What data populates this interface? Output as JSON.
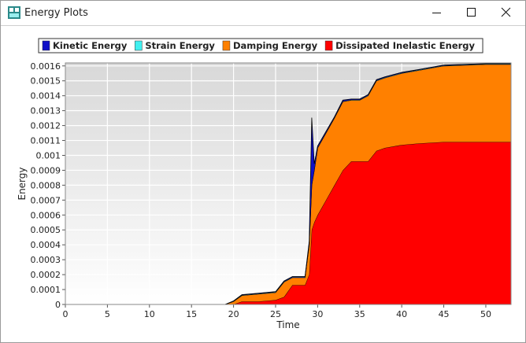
{
  "window": {
    "title": "Energy Plots"
  },
  "chart_data": {
    "type": "stacked-area",
    "xlabel": "Time",
    "ylabel": "Energy",
    "x": [
      0,
      17,
      19,
      20,
      21,
      23,
      25,
      26,
      27,
      28.5,
      29,
      29.3,
      29.6,
      30,
      31,
      32,
      33,
      34,
      35,
      36,
      37,
      38,
      40,
      42,
      45,
      50,
      53
    ],
    "series": [
      {
        "name": "Kinetic Energy",
        "color": "#1010c8",
        "values": [
          0,
          0,
          0,
          2e-06,
          3e-06,
          3e-06,
          3e-06,
          4e-06,
          4e-06,
          4e-06,
          2e-05,
          0.00045,
          4e-05,
          1e-05,
          8e-06,
          6e-06,
          8e-06,
          5e-06,
          5e-06,
          5e-06,
          5e-06,
          4e-06,
          4e-06,
          3e-06,
          3e-06,
          2e-06,
          2e-06
        ]
      },
      {
        "name": "Strain Energy",
        "color": "#40f0f0",
        "values": [
          0,
          0,
          0,
          2e-06,
          3e-06,
          3e-06,
          3e-06,
          3e-06,
          3e-06,
          3e-06,
          3e-06,
          3e-06,
          3e-06,
          3e-06,
          3e-06,
          3e-06,
          3e-06,
          3e-06,
          3e-06,
          3e-06,
          3e-06,
          3e-06,
          3e-06,
          3e-06,
          3e-06,
          3e-06,
          3e-06
        ]
      },
      {
        "name": "Damping Energy",
        "color": "#ff8000",
        "values": [
          0,
          0,
          0,
          2e-05,
          4e-05,
          5e-05,
          5e-05,
          0.0001,
          5e-05,
          5e-05,
          0.0002,
          0.0003,
          0.00035,
          0.00045,
          0.00045,
          0.00045,
          0.00046,
          0.00041,
          0.00041,
          0.00044,
          0.00047,
          0.00047,
          0.00048,
          0.00049,
          0.00051,
          0.00052,
          0.00052
        ]
      },
      {
        "name": "Dissipated Inelastic Energy",
        "color": "#ff0000",
        "values": [
          0,
          0,
          0,
          0,
          2e-05,
          2e-05,
          3e-05,
          5e-05,
          0.00013,
          0.00013,
          0.0002,
          0.0005,
          0.00055,
          0.0006,
          0.0007,
          0.0008,
          0.0009,
          0.00096,
          0.00096,
          0.00096,
          0.00103,
          0.00105,
          0.00107,
          0.00108,
          0.00109,
          0.00109,
          0.00109
        ]
      }
    ],
    "xlim": [
      0,
      53
    ],
    "ylim": [
      0,
      0.00162
    ],
    "xticks": [
      0,
      5,
      10,
      15,
      20,
      25,
      30,
      35,
      40,
      45,
      50
    ],
    "yticks": [
      0,
      0.0001,
      0.0002,
      0.0003,
      0.0004,
      0.0005,
      0.0006,
      0.0007,
      0.0008,
      0.0009,
      0.001,
      0.0011,
      0.0012,
      0.0013,
      0.0014,
      0.0015,
      0.0016
    ],
    "grid": true
  }
}
